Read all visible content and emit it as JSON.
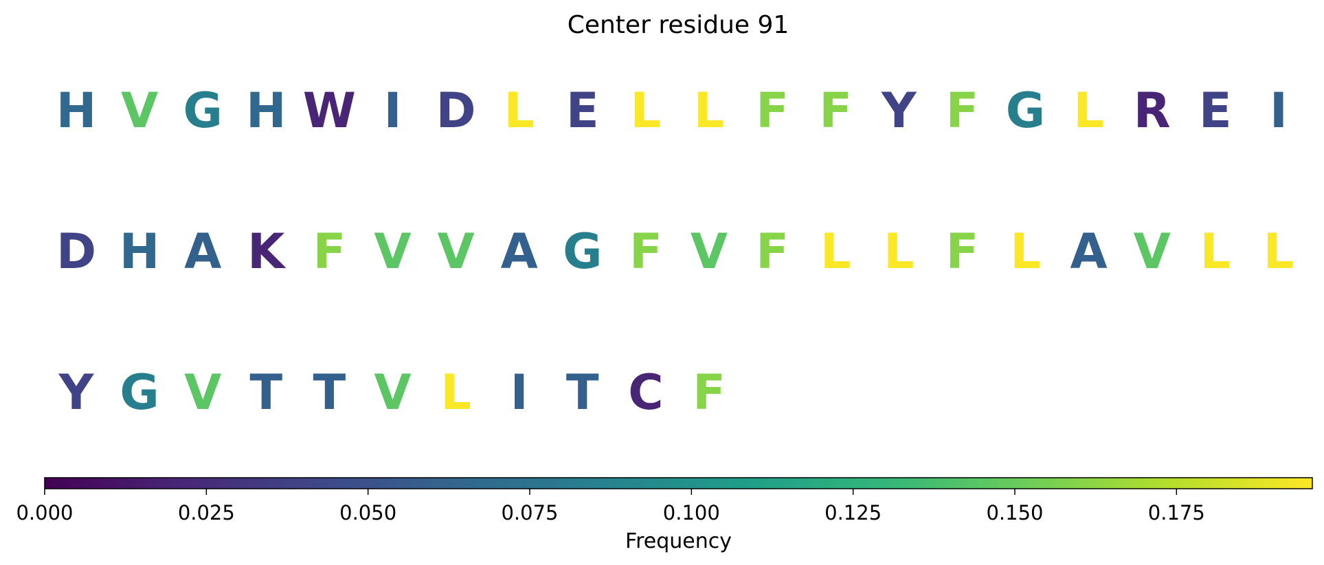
{
  "chart_data": {
    "type": "sequence-logo",
    "title": "Center residue 91",
    "residues": [
      {
        "letter": "H",
        "frequency": 0.065
      },
      {
        "letter": "V",
        "frequency": 0.145
      },
      {
        "letter": "G",
        "frequency": 0.085
      },
      {
        "letter": "H",
        "frequency": 0.065
      },
      {
        "letter": "W",
        "frequency": 0.02
      },
      {
        "letter": "I",
        "frequency": 0.06
      },
      {
        "letter": "D",
        "frequency": 0.04
      },
      {
        "letter": "L",
        "frequency": 0.195
      },
      {
        "letter": "E",
        "frequency": 0.04
      },
      {
        "letter": "L",
        "frequency": 0.195
      },
      {
        "letter": "L",
        "frequency": 0.195
      },
      {
        "letter": "F",
        "frequency": 0.16
      },
      {
        "letter": "F",
        "frequency": 0.16
      },
      {
        "letter": "Y",
        "frequency": 0.04
      },
      {
        "letter": "F",
        "frequency": 0.16
      },
      {
        "letter": "G",
        "frequency": 0.085
      },
      {
        "letter": "L",
        "frequency": 0.195
      },
      {
        "letter": "R",
        "frequency": 0.02
      },
      {
        "letter": "E",
        "frequency": 0.04
      },
      {
        "letter": "I",
        "frequency": 0.06
      },
      {
        "letter": "D",
        "frequency": 0.04
      },
      {
        "letter": "H",
        "frequency": 0.065
      },
      {
        "letter": "A",
        "frequency": 0.06
      },
      {
        "letter": "K",
        "frequency": 0.02
      },
      {
        "letter": "F",
        "frequency": 0.16
      },
      {
        "letter": "V",
        "frequency": 0.145
      },
      {
        "letter": "V",
        "frequency": 0.145
      },
      {
        "letter": "A",
        "frequency": 0.06
      },
      {
        "letter": "G",
        "frequency": 0.085
      },
      {
        "letter": "F",
        "frequency": 0.16
      },
      {
        "letter": "V",
        "frequency": 0.145
      },
      {
        "letter": "F",
        "frequency": 0.16
      },
      {
        "letter": "L",
        "frequency": 0.195
      },
      {
        "letter": "L",
        "frequency": 0.195
      },
      {
        "letter": "F",
        "frequency": 0.16
      },
      {
        "letter": "L",
        "frequency": 0.195
      },
      {
        "letter": "A",
        "frequency": 0.06
      },
      {
        "letter": "V",
        "frequency": 0.145
      },
      {
        "letter": "L",
        "frequency": 0.195
      },
      {
        "letter": "L",
        "frequency": 0.195
      },
      {
        "letter": "Y",
        "frequency": 0.04
      },
      {
        "letter": "G",
        "frequency": 0.085
      },
      {
        "letter": "V",
        "frequency": 0.145
      },
      {
        "letter": "T",
        "frequency": 0.06
      },
      {
        "letter": "T",
        "frequency": 0.06
      },
      {
        "letter": "V",
        "frequency": 0.145
      },
      {
        "letter": "L",
        "frequency": 0.195
      },
      {
        "letter": "I",
        "frequency": 0.06
      },
      {
        "letter": "T",
        "frequency": 0.06
      },
      {
        "letter": "C",
        "frequency": 0.02
      },
      {
        "letter": "F",
        "frequency": 0.16
      }
    ],
    "colorbar": {
      "label": "Frequency",
      "colormap": "viridis",
      "range": [
        0,
        0.196
      ],
      "ticks": [
        0.0,
        0.025,
        0.05,
        0.075,
        0.1,
        0.125,
        0.15,
        0.175
      ],
      "tick_labels": [
        "0.000",
        "0.025",
        "0.050",
        "0.075",
        "0.100",
        "0.125",
        "0.150",
        "0.175"
      ]
    }
  }
}
